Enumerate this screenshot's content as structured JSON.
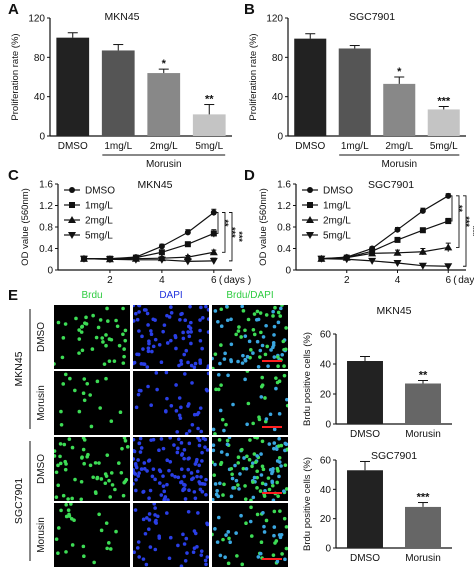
{
  "panels": {
    "A": {
      "letter": "A",
      "title": "MKN45",
      "ylabel": "Proliferation rate (%)",
      "group_label": "Morusin"
    },
    "B": {
      "letter": "B",
      "title": "SGC7901",
      "ylabel": "Proliferation rate (%)",
      "group_label": "Morusin"
    },
    "C": {
      "letter": "C",
      "title": "MKN45",
      "ylabel": "OD value (560nm)",
      "xlabel": "days",
      "sig": [
        "**",
        "***",
        "***"
      ]
    },
    "D": {
      "letter": "D",
      "title": "SGC7901",
      "ylabel": "OD value (560nm)",
      "xlabel": "days",
      "sig": [
        "**",
        "***",
        "***"
      ]
    },
    "E": {
      "letter": "E",
      "col_headers": [
        "Brdu",
        "DAPI",
        "Brdu/DAPI"
      ],
      "row_groups": [
        "MKN45",
        "SGC7901"
      ],
      "row_labels": [
        "DMSO",
        "Morusin",
        "DMSO",
        "Morusin"
      ],
      "header_colors": {
        "brdu": "#2ecc40",
        "dapi": "#2233dd",
        "merge_green": "#2ecc40",
        "merge_blue": "#2233dd"
      }
    }
  },
  "chart_data": [
    {
      "id": "A",
      "type": "bar",
      "title": "MKN45",
      "ylabel": "Proliferation rate (%)",
      "categories": [
        "DMSO",
        "1mg/L",
        "2mg/L",
        "5mg/L"
      ],
      "values": [
        100,
        87,
        64,
        22
      ],
      "errors": [
        5,
        6,
        4,
        10
      ],
      "sig": [
        "",
        "",
        "*",
        "**"
      ],
      "ylim": [
        0,
        120
      ],
      "yticks": [
        0,
        40,
        80,
        120
      ],
      "colors": [
        "#222222",
        "#555555",
        "#888888",
        "#c4c4c4"
      ]
    },
    {
      "id": "B",
      "type": "bar",
      "title": "SGC7901",
      "ylabel": "Proliferation rate (%)",
      "categories": [
        "DMSO",
        "1mg/L",
        "2mg/L",
        "5mg/L"
      ],
      "values": [
        99,
        89,
        53,
        27
      ],
      "errors": [
        5,
        3,
        7,
        3
      ],
      "sig": [
        "",
        "",
        "*",
        "***"
      ],
      "ylim": [
        0,
        120
      ],
      "yticks": [
        0,
        40,
        80,
        120
      ],
      "colors": [
        "#222222",
        "#555555",
        "#888888",
        "#c4c4c4"
      ]
    },
    {
      "id": "C",
      "type": "line",
      "title": "MKN45",
      "ylabel": "OD value (560nm)",
      "xlabel": "days",
      "x": [
        1,
        2,
        3,
        4,
        5,
        6
      ],
      "xticks": [
        2,
        4,
        6
      ],
      "xlim": [
        0,
        6.7
      ],
      "ylim": [
        0,
        1.6
      ],
      "yticks": [
        0,
        0.4,
        0.8,
        1.2,
        1.6
      ],
      "ytick_labels": [
        "0",
        "0.4",
        "0.8",
        "1.2",
        "1.6"
      ],
      "series": [
        {
          "name": "DMSO",
          "marker": "circle",
          "values": [
            0.21,
            0.21,
            0.24,
            0.44,
            0.7,
            1.07
          ],
          "errors": [
            0.02,
            0.02,
            0.02,
            0.04,
            0.05,
            0.06
          ]
        },
        {
          "name": "1mg/L",
          "marker": "square",
          "values": [
            0.21,
            0.21,
            0.23,
            0.33,
            0.48,
            0.68
          ],
          "errors": [
            0.02,
            0.02,
            0.02,
            0.04,
            0.04,
            0.07
          ]
        },
        {
          "name": "2mg/L",
          "marker": "triangle-up",
          "values": [
            0.21,
            0.2,
            0.21,
            0.22,
            0.24,
            0.33
          ],
          "errors": [
            0.02,
            0.02,
            0.02,
            0.03,
            0.03,
            0.04
          ]
        },
        {
          "name": "5mg/L",
          "marker": "triangle-down",
          "values": [
            0.21,
            0.2,
            0.19,
            0.19,
            0.16,
            0.17
          ],
          "errors": [
            0.02,
            0.02,
            0.02,
            0.03,
            0.03,
            0.05
          ]
        }
      ]
    },
    {
      "id": "D",
      "type": "line",
      "title": "SGC7901",
      "ylabel": "OD value (560nm)",
      "xlabel": "days",
      "x": [
        1,
        2,
        3,
        4,
        5,
        6
      ],
      "xticks": [
        2,
        4,
        6
      ],
      "xlim": [
        0,
        6.7
      ],
      "ylim": [
        0,
        1.6
      ],
      "yticks": [
        0,
        0.4,
        0.8,
        1.2,
        1.6
      ],
      "ytick_labels": [
        "0",
        "0.4",
        "0.8",
        "1.2",
        "1.6"
      ],
      "series": [
        {
          "name": "DMSO",
          "marker": "circle",
          "values": [
            0.21,
            0.24,
            0.4,
            0.75,
            1.1,
            1.38
          ],
          "errors": [
            0.02,
            0.02,
            0.03,
            0.04,
            0.05,
            0.04
          ]
        },
        {
          "name": "1mg/L",
          "marker": "square",
          "values": [
            0.21,
            0.23,
            0.35,
            0.56,
            0.74,
            0.91
          ],
          "errors": [
            0.02,
            0.02,
            0.03,
            0.04,
            0.04,
            0.05
          ]
        },
        {
          "name": "2mg/L",
          "marker": "triangle-up",
          "values": [
            0.21,
            0.23,
            0.31,
            0.32,
            0.34,
            0.42
          ],
          "errors": [
            0.02,
            0.02,
            0.03,
            0.05,
            0.06,
            0.08
          ]
        },
        {
          "name": "5mg/L",
          "marker": "triangle-down",
          "values": [
            0.21,
            0.2,
            0.17,
            0.13,
            0.08,
            0.07
          ],
          "errors": [
            0.02,
            0.02,
            0.02,
            0.03,
            0.02,
            0.02
          ]
        }
      ]
    },
    {
      "id": "E1",
      "type": "bar",
      "title": "MKN45",
      "ylabel": "Brdu positive cells (%)",
      "categories": [
        "DMSO",
        "Morusin"
      ],
      "values": [
        42,
        27
      ],
      "errors": [
        3,
        2
      ],
      "sig": [
        "",
        "**"
      ],
      "ylim": [
        0,
        60
      ],
      "yticks": [
        0,
        20,
        40,
        60
      ],
      "colors": [
        "#222222",
        "#666666"
      ]
    },
    {
      "id": "E2",
      "type": "bar",
      "title": "SGC7901",
      "ylabel": "Brdu positive cells (%)",
      "categories": [
        "DMSO",
        "Morusin"
      ],
      "values": [
        53,
        28
      ],
      "errors": [
        6,
        3
      ],
      "sig": [
        "",
        "***"
      ],
      "ylim": [
        0,
        60
      ],
      "yticks": [
        0,
        20,
        40,
        60
      ],
      "colors": [
        "#222222",
        "#666666"
      ]
    }
  ]
}
